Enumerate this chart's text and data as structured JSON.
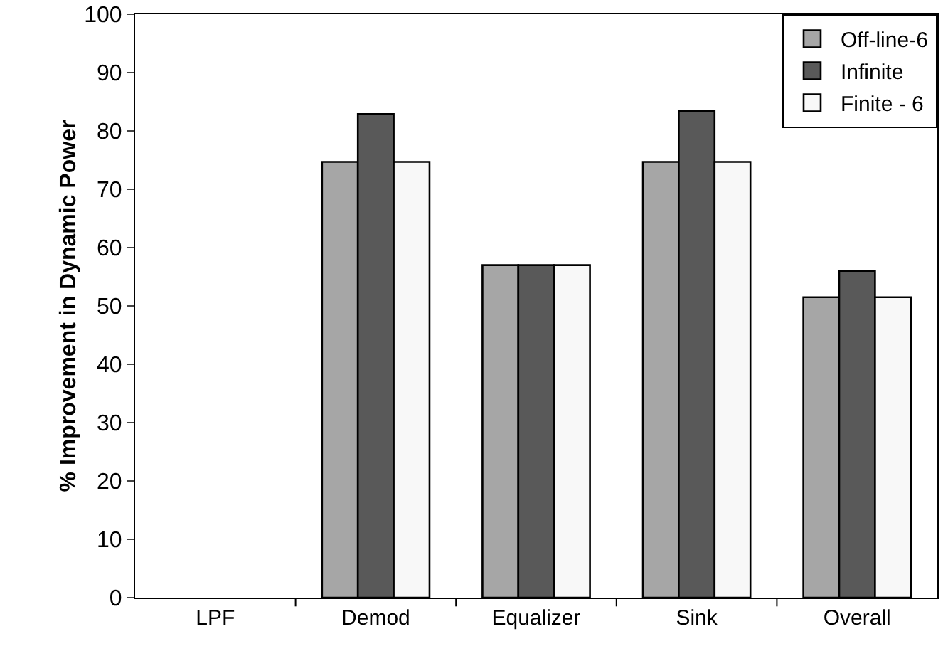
{
  "chart_data": {
    "type": "bar",
    "ylabel": "% Improvement in Dynamic Power",
    "categories": [
      "LPF",
      "Demod",
      "Equalizer",
      "Sink",
      "Overall"
    ],
    "series": [
      {
        "name": "Off-line-6",
        "color": "#a6a6a6",
        "values": [
          null,
          74.7,
          57,
          74.7,
          51.5
        ]
      },
      {
        "name": "Infinite",
        "color": "#595959",
        "values": [
          null,
          82.9,
          57,
          83.4,
          56
        ]
      },
      {
        "name": "Finite - 6",
        "color": "#f8f8f8",
        "values": [
          null,
          74.7,
          57,
          74.7,
          51.5
        ]
      }
    ],
    "ylim": [
      0,
      100
    ],
    "yticks": [
      0,
      10,
      20,
      30,
      40,
      50,
      60,
      70,
      80,
      90,
      100
    ],
    "grid": false,
    "legend": "top right"
  }
}
